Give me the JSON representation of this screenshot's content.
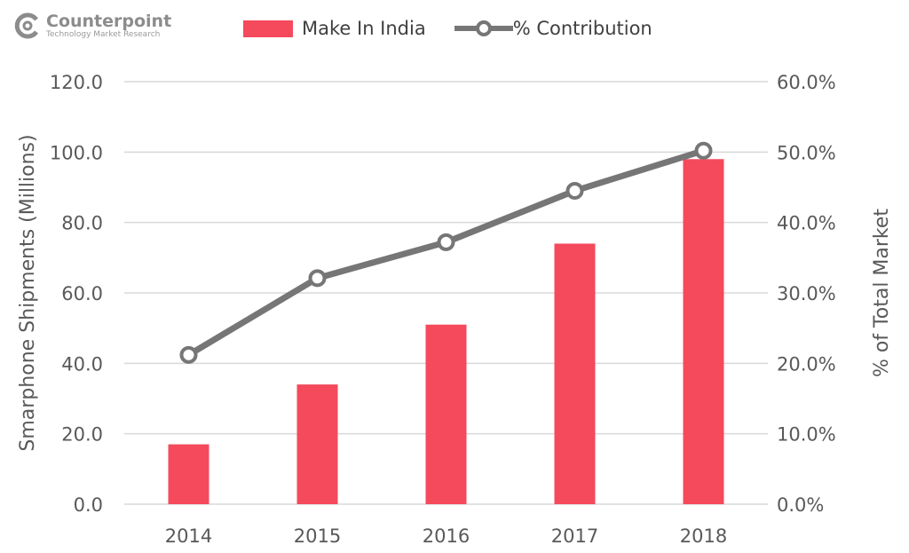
{
  "logo": {
    "name": "Counterpoint",
    "tagline": "Technology Market Research"
  },
  "colors": {
    "bar": "#f5495c",
    "line": "#767676",
    "grid": "#d9d9d9"
  },
  "chart_data": {
    "type": "bar+line",
    "categories": [
      "2014",
      "2015",
      "2016",
      "2017",
      "2018"
    ],
    "series": [
      {
        "name": "Make In India",
        "type": "bar",
        "axis": "left",
        "values": [
          17,
          34,
          51,
          74,
          98
        ]
      },
      {
        "name": "% Contribution",
        "type": "line",
        "axis": "right",
        "values": [
          21.2,
          32.1,
          37.2,
          44.5,
          50.2
        ]
      }
    ],
    "ylabel": "Smarphone Shipments (Millions)",
    "y2label": "% of Total Market",
    "ylim": [
      0,
      120
    ],
    "y2lim": [
      0,
      60
    ],
    "yticks": [
      "0.0",
      "20.0",
      "40.0",
      "60.0",
      "80.0",
      "100.0",
      "120.0"
    ],
    "y2ticks": [
      "0.0%",
      "10.0%",
      "20.0%",
      "30.0%",
      "40.0%",
      "50.0%",
      "60.0%"
    ],
    "grid": true,
    "legend": "top"
  }
}
